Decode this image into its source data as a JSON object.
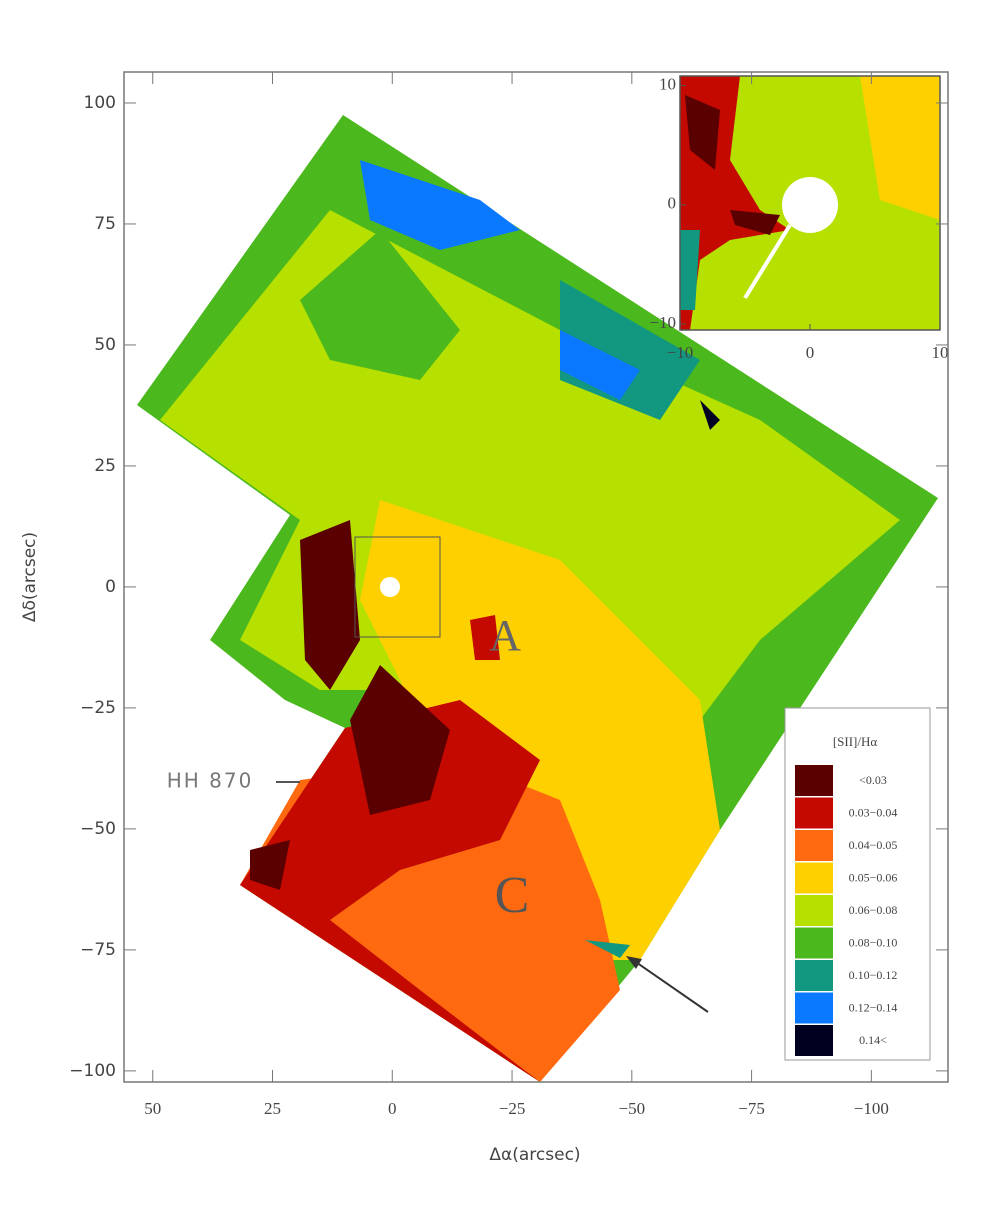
{
  "chart_data": {
    "type": "heatmap",
    "xlabel": "Δα(arcsec)",
    "ylabel": "Δδ(arcsec)",
    "xlim": [
      56,
      -116
    ],
    "ylim": [
      -102.3,
      106.4
    ],
    "xticks": [
      50,
      25,
      0,
      {
        "value": -25,
        "label": "−25"
      },
      {
        "value": -50,
        "label": "−50"
      },
      {
        "value": -75,
        "label": "−75"
      },
      {
        "value": -100,
        "label": "−100"
      }
    ],
    "yticks": [
      100,
      75,
      50,
      25,
      0,
      {
        "value": -25,
        "label": "−25"
      },
      {
        "value": -50,
        "label": "−50"
      },
      {
        "value": -75,
        "label": "−75"
      },
      {
        "value": -100,
        "label": "−100"
      }
    ],
    "annotations": [
      "HH 870",
      "A",
      "C"
    ],
    "legend": {
      "title": "[SII]/Hα",
      "items": [
        {
          "label": "<0.03",
          "color": "#5a0000"
        },
        {
          "label": "0.03−0.04",
          "color": "#c40a00"
        },
        {
          "label": "0.04−0.05",
          "color": "#ff6a10"
        },
        {
          "label": "0.05−0.06",
          "color": "#ffd000"
        },
        {
          "label": "0.06−0.08",
          "color": "#b5e000"
        },
        {
          "label": "0.08−0.10",
          "color": "#4bb81e"
        },
        {
          "label": "0.10−0.12",
          "color": "#129880"
        },
        {
          "label": "0.12−0.14",
          "color": "#0a78ff"
        },
        {
          "label": "0.14<",
          "color": "#000020"
        }
      ]
    },
    "inset": {
      "xlim": [
        -10,
        10
      ],
      "ylim": [
        -10.5,
        10.8
      ],
      "xticks": [
        {
          "value": -10,
          "label": "−10"
        },
        0,
        10
      ],
      "yticks": [
        10,
        0,
        {
          "value": -10,
          "label": "−10"
        }
      ]
    }
  }
}
